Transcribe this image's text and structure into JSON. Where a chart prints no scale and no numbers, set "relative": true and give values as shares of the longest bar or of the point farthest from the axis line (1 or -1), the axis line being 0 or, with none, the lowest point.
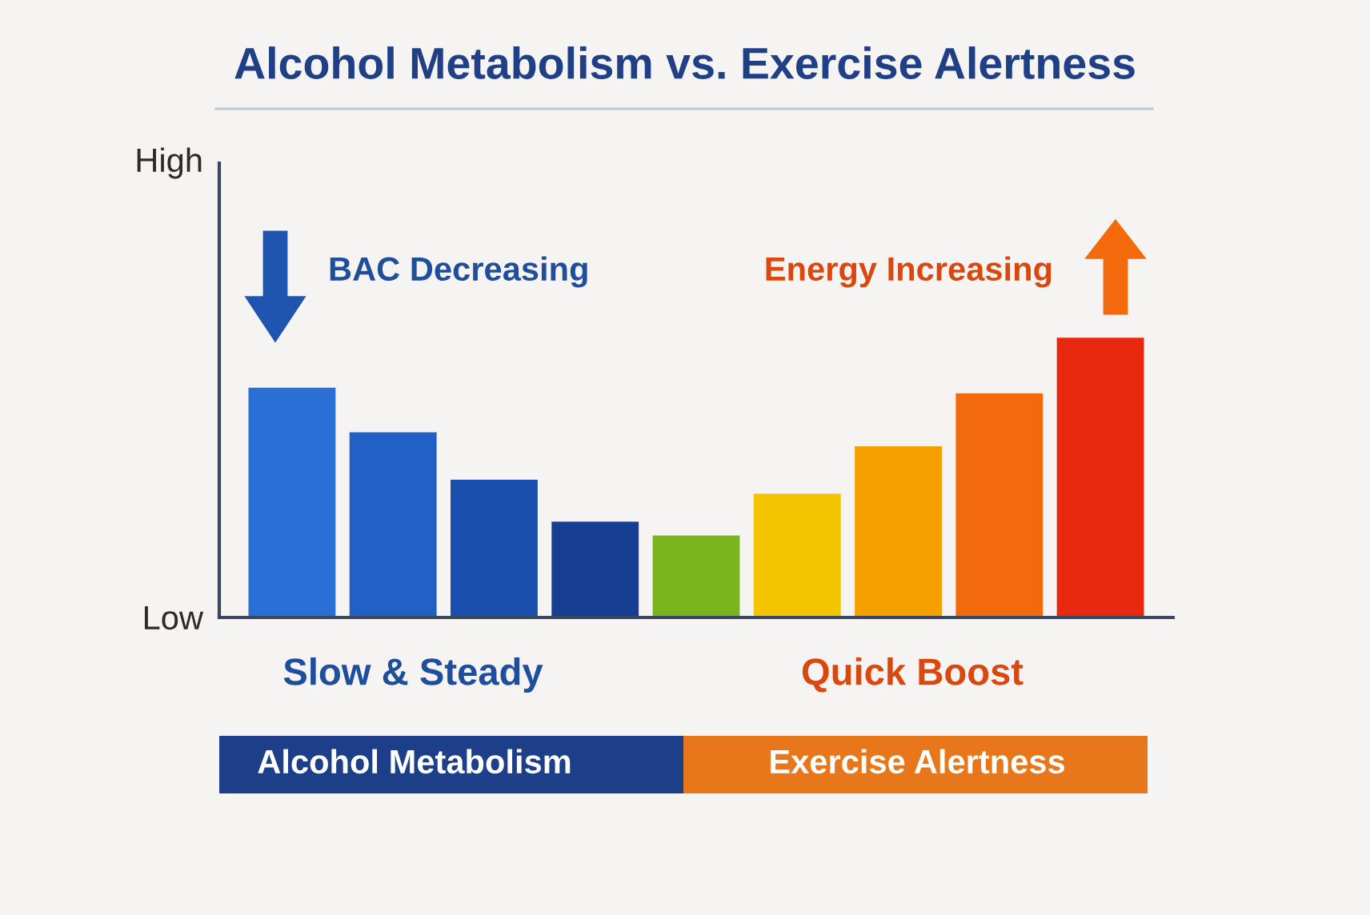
{
  "chart_data": {
    "type": "bar",
    "title": "Alcohol Metabolism vs. Exercise Alertness",
    "relative": true,
    "categories": [
      null,
      null,
      null,
      null,
      null,
      null,
      null,
      null,
      null
    ],
    "values": [
      0.82,
      0.66,
      0.49,
      0.34,
      0.29,
      0.44,
      0.61,
      0.8,
      1
    ],
    "colors": [
      "#2a6fd6",
      "#2160c4",
      "#1a4fae",
      "#163f94",
      "#7ab51d",
      "#f5c400",
      "#f6a000",
      "#f26a0c",
      "#e8280f"
    ],
    "annotations": [
      "High",
      "Low",
      "BAC Decreasing",
      "Energy Increasing",
      "Slow & Steady",
      "Quick Boost",
      "Alcohol Metabolism",
      "Exercise Alertness"
    ]
  }
}
